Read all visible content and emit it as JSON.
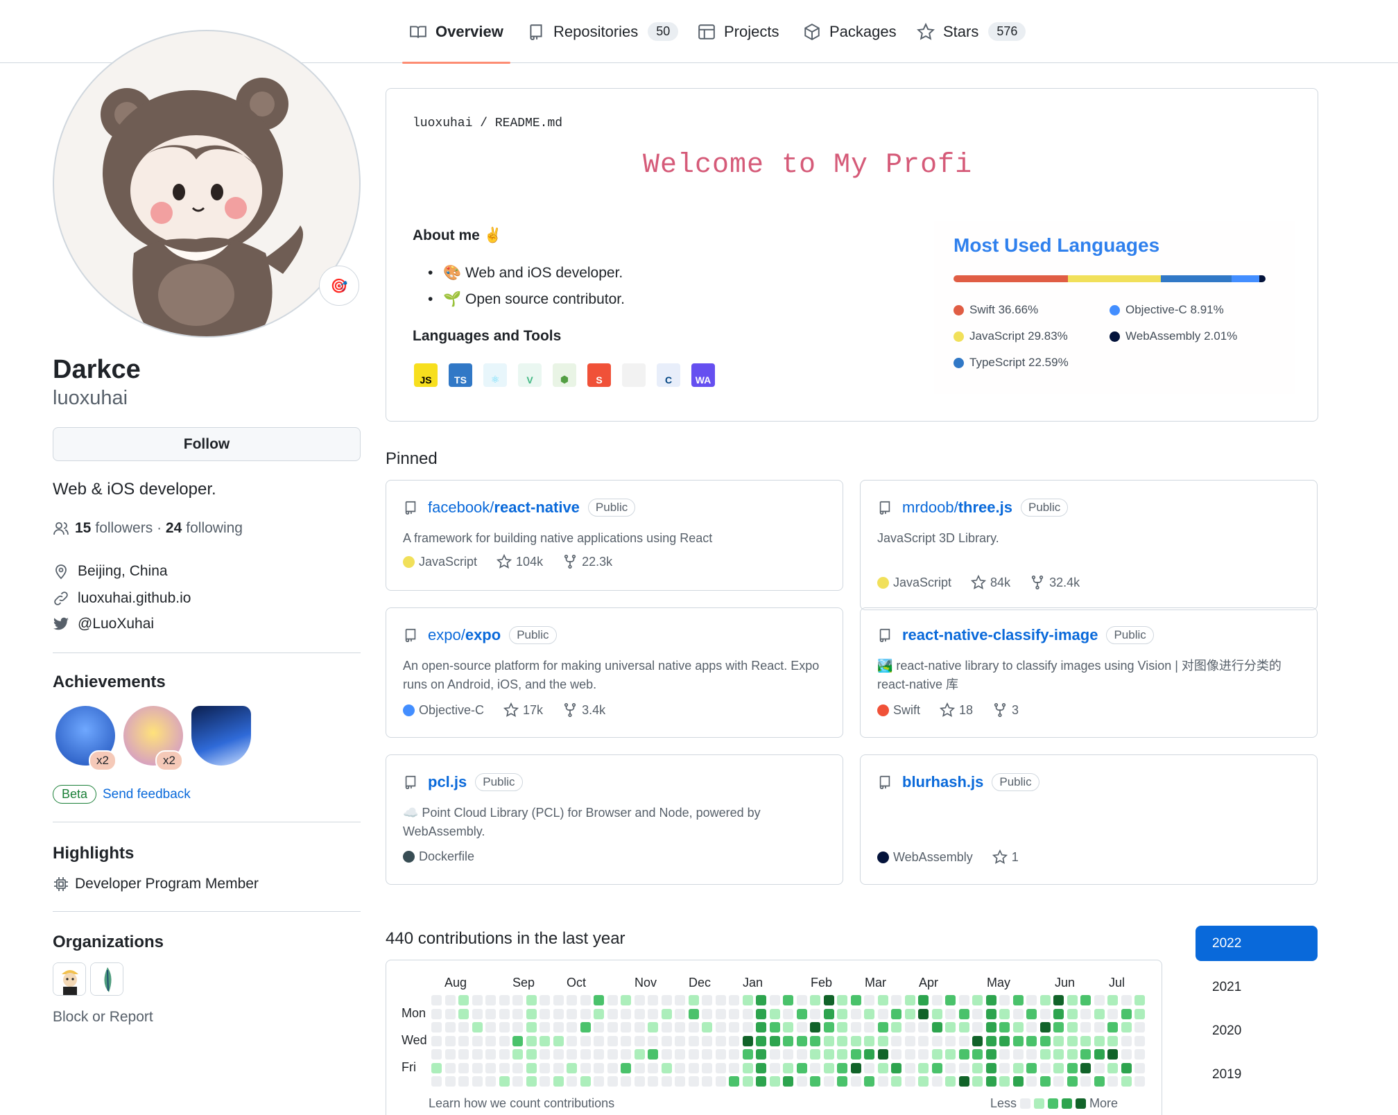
{
  "nav": {
    "tabs": [
      {
        "label": "Overview",
        "icon": "book-icon"
      },
      {
        "label": "Repositories",
        "count": "50",
        "icon": "repo-icon"
      },
      {
        "label": "Projects",
        "icon": "table-icon"
      },
      {
        "label": "Packages",
        "icon": "package-icon"
      },
      {
        "label": "Stars",
        "count": "576",
        "icon": "star-icon"
      }
    ]
  },
  "profile": {
    "name": "Darkce",
    "login": "luoxuhai",
    "status_emoji": "🎯",
    "follow_label": "Follow",
    "bio": "Web & iOS developer.",
    "followers_count": "15",
    "followers_label": "followers",
    "following_count": "24",
    "following_label": "following",
    "location": "Beijing, China",
    "website": "luoxuhai.github.io",
    "twitter": "@LuoXuhai"
  },
  "achievements": {
    "heading": "Achievements",
    "badges": [
      {
        "icon": "shark-badge-icon",
        "count": "x2"
      },
      {
        "icon": "starstruck-badge-icon",
        "count": "x2"
      },
      {
        "icon": "arctic-badge-icon",
        "count": ""
      }
    ],
    "beta_label": "Beta",
    "feedback_label": "Send feedback"
  },
  "highlights": {
    "heading": "Highlights",
    "item": "Developer Program Member"
  },
  "organizations": {
    "heading": "Organizations",
    "block_label": "Block or Report"
  },
  "readme": {
    "path_user": "luoxuhai",
    "path_sep": "/",
    "path_file": "README.md",
    "typing_text": "Welcome to My Profi",
    "about_heading": "About me ✌️",
    "about_items": [
      "🎨 Web and iOS developer.",
      "🌱 Open source contributor."
    ],
    "tools_heading": "Languages and Tools",
    "tools": [
      {
        "label": "JS",
        "bg": "#f7df1e",
        "fg": "#000000"
      },
      {
        "label": "TS",
        "bg": "#3178c6",
        "fg": "#ffffff"
      },
      {
        "label": "⚛",
        "bg": "#e8f6fb",
        "fg": "#61dafb"
      },
      {
        "label": "V",
        "bg": "#eaf7f1",
        "fg": "#41b883"
      },
      {
        "label": "⬢",
        "bg": "#e9f4e5",
        "fg": "#539e43"
      },
      {
        "label": "S",
        "bg": "#f05138",
        "fg": "#ffffff"
      },
      {
        "label": "",
        "bg": "#f2f2f2",
        "fg": "#999999"
      },
      {
        "label": "C",
        "bg": "#e8eefa",
        "fg": "#004482"
      },
      {
        "label": "WA",
        "bg": "#654ff0",
        "fg": "#ffffff"
      }
    ],
    "languages": {
      "title": "Most Used Languages",
      "items": [
        {
          "name": "Swift",
          "percent": "36.66%",
          "value": 36.66,
          "color": "#e05d44"
        },
        {
          "name": "JavaScript",
          "percent": "29.83%",
          "value": 29.83,
          "color": "#f1e05a"
        },
        {
          "name": "TypeScript",
          "percent": "22.59%",
          "value": 22.59,
          "color": "#3178c6"
        },
        {
          "name": "Objective-C",
          "percent": "8.91%",
          "value": 8.91,
          "color": "#438eff"
        },
        {
          "name": "WebAssembly",
          "percent": "2.01%",
          "value": 2.01,
          "color": "#04133b"
        }
      ]
    }
  },
  "pinned": {
    "heading": "Pinned",
    "public_label": "Public",
    "items": [
      {
        "owner": "facebook/",
        "repo": "react-native",
        "desc": "A framework for building native applications using React",
        "lang": "JavaScript",
        "lang_color": "#f1e05a",
        "stars": "104k",
        "forks": "22.3k"
      },
      {
        "owner": "mrdoob/",
        "repo": "three.js",
        "desc": "JavaScript 3D Library.",
        "lang": "JavaScript",
        "lang_color": "#f1e05a",
        "stars": "84k",
        "forks": "32.4k"
      },
      {
        "owner": "expo/",
        "repo": "expo",
        "desc": "An open-source platform for making universal native apps with React. Expo runs on Android, iOS, and the web.",
        "lang": "Objective-C",
        "lang_color": "#438eff",
        "stars": "17k",
        "forks": "3.4k"
      },
      {
        "owner": "",
        "repo": "react-native-classify-image",
        "desc": "🏞️ react-native library to classify images using Vision | 对图像进行分类的 react-native 库",
        "lang": "Swift",
        "lang_color": "#f05138",
        "stars": "18",
        "forks": "3"
      },
      {
        "owner": "",
        "repo": "pcl.js",
        "desc": "☁️ Point Cloud Library (PCL) for Browser and Node, powered by WebAssembly.",
        "lang": "Dockerfile",
        "lang_color": "#384d54",
        "stars": "",
        "forks": ""
      },
      {
        "owner": "",
        "repo": "blurhash.js",
        "desc": "",
        "lang": "WebAssembly",
        "lang_color": "#04133b",
        "stars": "1",
        "forks": ""
      }
    ]
  },
  "contributions": {
    "heading": "440 contributions in the last year",
    "months": [
      "Aug",
      "Sep",
      "Oct",
      "Nov",
      "Dec",
      "Jan",
      "Feb",
      "Mar",
      "Apr",
      "May",
      "Jun",
      "Jul"
    ],
    "days": [
      "Mon",
      "Wed",
      "Fri"
    ],
    "learn_label": "Learn how we count contributions",
    "less_label": "Less",
    "more_label": "More",
    "level_colors": [
      "#ebedf0",
      "#aceebb",
      "#4ac26b",
      "#2da44e",
      "#116329"
    ],
    "years": [
      "2022",
      "2021",
      "2020",
      "2019"
    ],
    "active_year": "2022"
  }
}
